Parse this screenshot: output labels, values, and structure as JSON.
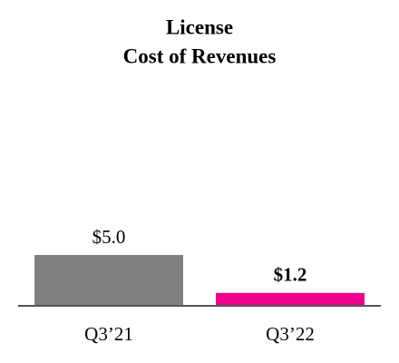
{
  "chart_data": {
    "type": "bar",
    "title": [
      "License",
      "Cost of Revenues"
    ],
    "categories": [
      "Q3’21",
      "Q3’22"
    ],
    "values": [
      5.0,
      1.2
    ],
    "value_labels": [
      "$5.0",
      "$1.2"
    ],
    "colors": [
      "#808080",
      "#ec008c"
    ],
    "bold_labels": [
      false,
      true
    ]
  }
}
